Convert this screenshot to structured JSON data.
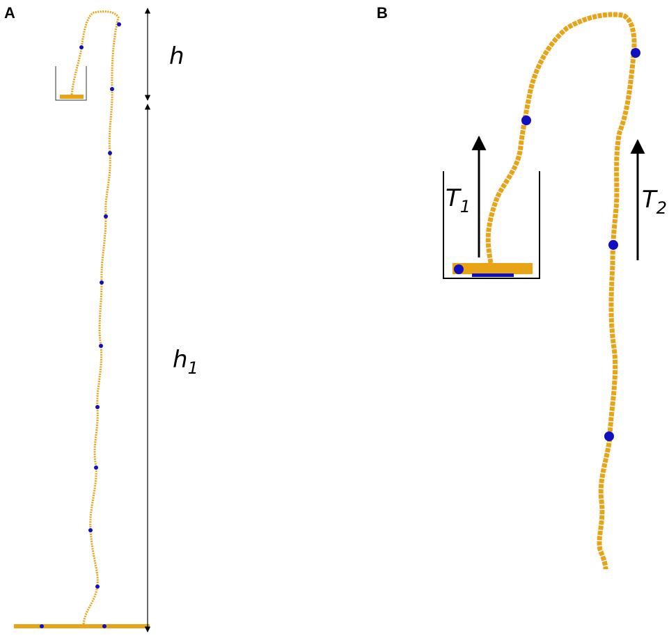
{
  "panels": [
    {
      "label": "A",
      "annotations": [
        {
          "symbol": "h"
        },
        {
          "symbol": "h",
          "subscript": "1"
        }
      ]
    },
    {
      "label": "B",
      "annotations": [
        {
          "symbol": "T",
          "subscript": "1"
        },
        {
          "symbol": "T",
          "subscript": "2"
        }
      ]
    }
  ]
}
